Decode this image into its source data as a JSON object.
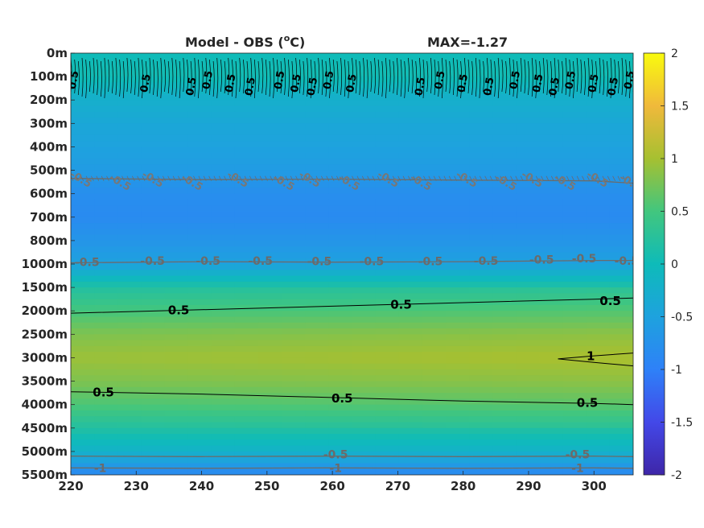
{
  "chart_data": {
    "type": "heatmap",
    "title": "Model - OBS (",
    "title_superscript": "o",
    "title_unit_suffix": "C)",
    "annotation": "MAX=-1.27",
    "xlabel": "",
    "ylabel": "",
    "xlim": [
      220,
      306
    ],
    "x_ticks": [
      220,
      230,
      240,
      250,
      260,
      270,
      280,
      290,
      300
    ],
    "x_tick_labels": [
      "220",
      "230",
      "240",
      "250",
      "260",
      "270",
      "280",
      "290",
      "300"
    ],
    "y_tick_labels": [
      "0m",
      "100m",
      "200m",
      "300m",
      "400m",
      "500m",
      "600m",
      "700m",
      "800m",
      "1000m",
      "1500m",
      "2000m",
      "2500m",
      "3000m",
      "3500m",
      "4000m",
      "4500m",
      "5000m",
      "5500m"
    ],
    "colorbar": {
      "clim": [
        -2,
        2
      ],
      "ticks": [
        -2,
        -1.5,
        -1,
        -0.5,
        0,
        0.5,
        1,
        1.5,
        2
      ],
      "tick_labels": [
        "-2",
        "-1.5",
        "-1",
        "-0.5",
        "0",
        "0.5",
        "1",
        "1.5",
        "2"
      ],
      "colormap": "parula"
    },
    "depth_profile": {
      "levels": [
        "0m",
        "100m",
        "200m",
        "300m",
        "400m",
        "500m",
        "600m",
        "700m",
        "800m",
        "1000m",
        "1500m",
        "2000m",
        "2500m",
        "3000m",
        "3500m",
        "4000m",
        "4500m",
        "5000m",
        "5500m"
      ],
      "values": [
        0.0,
        0.05,
        -0.25,
        -0.4,
        -0.5,
        -0.6,
        -0.8,
        -0.85,
        -0.7,
        -0.5,
        0.2,
        0.5,
        0.8,
        0.95,
        0.8,
        0.55,
        0.2,
        -0.2,
        -0.9
      ],
      "east_increment": 0.08
    },
    "contours": [
      {
        "level": 0.5,
        "color": "#000000",
        "label": "0.5",
        "x": [
          220,
          240,
          260,
          280,
          300,
          306
        ],
        "y_level": [
          11.1,
          10.95,
          10.8,
          10.65,
          10.5,
          10.45
        ]
      },
      {
        "level": 0.5,
        "color": "#000000",
        "label": "0.5",
        "x": [
          220,
          240,
          260,
          280,
          300,
          306
        ],
        "y_level": [
          14.45,
          14.55,
          14.7,
          14.85,
          14.95,
          15.0
        ]
      },
      {
        "level": 1,
        "color": "#000000",
        "label": "1",
        "x": [
          306,
          300,
          294.5,
          300,
          306
        ],
        "y_level": [
          12.8,
          12.92,
          13.05,
          13.2,
          13.35
        ]
      },
      {
        "level": -0.5,
        "color": "#6b6b6b",
        "label": "-0.5",
        "x": [
          220,
          240,
          260,
          280,
          300,
          306
        ],
        "y_level": [
          8.95,
          8.9,
          8.92,
          8.9,
          8.85,
          8.85
        ]
      },
      {
        "level": -0.5,
        "color": "#6b6b6b",
        "label": "-0.5",
        "x": [
          220,
          240,
          260,
          280,
          300,
          306
        ],
        "y_level": [
          5.35,
          5.4,
          5.38,
          5.42,
          5.45,
          5.55
        ]
      },
      {
        "level": -0.5,
        "color": "#6b6b6b",
        "label": "-0.5",
        "x": [
          220,
          240,
          260,
          280,
          300,
          306
        ],
        "y_level": [
          17.2,
          17.22,
          17.2,
          17.22,
          17.2,
          17.22
        ]
      },
      {
        "level": -1,
        "color": "#6b6b6b",
        "label": "-1",
        "x": [
          220,
          240,
          260,
          280,
          300,
          306
        ],
        "y_level": [
          17.7,
          17.72,
          17.7,
          17.72,
          17.7,
          17.72
        ]
      }
    ],
    "contour_labels": [
      {
        "text": "0.5",
        "x": 236.5,
        "y_level": 11.0,
        "color": "#000000"
      },
      {
        "text": "0.5",
        "x": 270.5,
        "y_level": 10.75,
        "color": "#000000"
      },
      {
        "text": "0.5",
        "x": 302.5,
        "y_level": 10.6,
        "color": "#000000"
      },
      {
        "text": "0.5",
        "x": 225,
        "y_level": 14.5,
        "color": "#000000"
      },
      {
        "text": "0.5",
        "x": 261.5,
        "y_level": 14.75,
        "color": "#000000"
      },
      {
        "text": "0.5",
        "x": 299,
        "y_level": 14.95,
        "color": "#000000"
      },
      {
        "text": "1",
        "x": 299.5,
        "y_level": 12.95,
        "color": "#000000"
      },
      {
        "text": "-0.5",
        "x": 222.5,
        "y_level": 8.95,
        "color": "#6b6b6b"
      },
      {
        "text": "-0.5",
        "x": 232.5,
        "y_level": 8.9,
        "color": "#6b6b6b"
      },
      {
        "text": "-0.5",
        "x": 241,
        "y_level": 8.9,
        "color": "#6b6b6b"
      },
      {
        "text": "-0.5",
        "x": 249,
        "y_level": 8.9,
        "color": "#6b6b6b"
      },
      {
        "text": "-0.5",
        "x": 258,
        "y_level": 8.92,
        "color": "#6b6b6b"
      },
      {
        "text": "-0.5",
        "x": 266,
        "y_level": 8.92,
        "color": "#6b6b6b"
      },
      {
        "text": "-0.5",
        "x": 275,
        "y_level": 8.92,
        "color": "#6b6b6b"
      },
      {
        "text": "-0.5",
        "x": 283.5,
        "y_level": 8.9,
        "color": "#6b6b6b"
      },
      {
        "text": "-0.5",
        "x": 292,
        "y_level": 8.85,
        "color": "#6b6b6b"
      },
      {
        "text": "-0.5",
        "x": 298.5,
        "y_level": 8.8,
        "color": "#6b6b6b"
      },
      {
        "text": "-0.5",
        "x": 305,
        "y_level": 8.9,
        "color": "#6b6b6b"
      },
      {
        "text": "-0.5",
        "x": 260.5,
        "y_level": 17.15,
        "color": "#6b6b6b"
      },
      {
        "text": "-0.5",
        "x": 297.5,
        "y_level": 17.15,
        "color": "#6b6b6b"
      },
      {
        "text": "-1",
        "x": 224.5,
        "y_level": 17.75,
        "color": "#6b6b6b"
      },
      {
        "text": "-1",
        "x": 260.5,
        "y_level": 17.75,
        "color": "#6b6b6b"
      },
      {
        "text": "-1",
        "x": 297.5,
        "y_level": 17.75,
        "color": "#6b6b6b"
      }
    ],
    "upper_contour_label_groups": [
      {
        "x": 220,
        "text": "0.5"
      },
      {
        "x": 231,
        "text": "0.5"
      },
      {
        "x": 238,
        "text": "0.5"
      },
      {
        "x": 240.5,
        "text": "0.5"
      },
      {
        "x": 244,
        "text": "0.5"
      },
      {
        "x": 247,
        "text": "0.5"
      },
      {
        "x": 251.5,
        "text": "0.5"
      },
      {
        "x": 254,
        "text": "0.5"
      },
      {
        "x": 256.5,
        "text": "0.5"
      },
      {
        "x": 259,
        "text": "0.5"
      },
      {
        "x": 262.5,
        "text": "0.5"
      },
      {
        "x": 273,
        "text": "0.5"
      },
      {
        "x": 276,
        "text": "0.5"
      },
      {
        "x": 279.5,
        "text": "0.5"
      },
      {
        "x": 283.5,
        "text": "0.5"
      },
      {
        "x": 287.5,
        "text": "0.5"
      },
      {
        "x": 291,
        "text": "0.5"
      },
      {
        "x": 293.5,
        "text": "0.5"
      },
      {
        "x": 296,
        "text": "0.5"
      },
      {
        "x": 299.5,
        "text": "0.5"
      },
      {
        "x": 302.5,
        "text": "0.5"
      },
      {
        "x": 305,
        "text": "0.5"
      }
    ],
    "upper_gray_label_groups": [
      {
        "x": 221,
        "text": "-0.5"
      },
      {
        "x": 227,
        "text": "-0.5"
      },
      {
        "x": 232,
        "text": "-0.5"
      },
      {
        "x": 238,
        "text": "-0.5"
      },
      {
        "x": 245,
        "text": "-0.5"
      },
      {
        "x": 252,
        "text": "-0.5"
      },
      {
        "x": 256,
        "text": "-0.5"
      },
      {
        "x": 262,
        "text": "-0.5"
      },
      {
        "x": 268,
        "text": "-0.5"
      },
      {
        "x": 273,
        "text": "-0.5"
      },
      {
        "x": 280,
        "text": "-0.5"
      },
      {
        "x": 286,
        "text": "-0.5"
      },
      {
        "x": 290,
        "text": "-0.5"
      },
      {
        "x": 295,
        "text": "-0.5"
      },
      {
        "x": 300,
        "text": "-0.5"
      },
      {
        "x": 305,
        "text": "-0.5"
      }
    ]
  }
}
